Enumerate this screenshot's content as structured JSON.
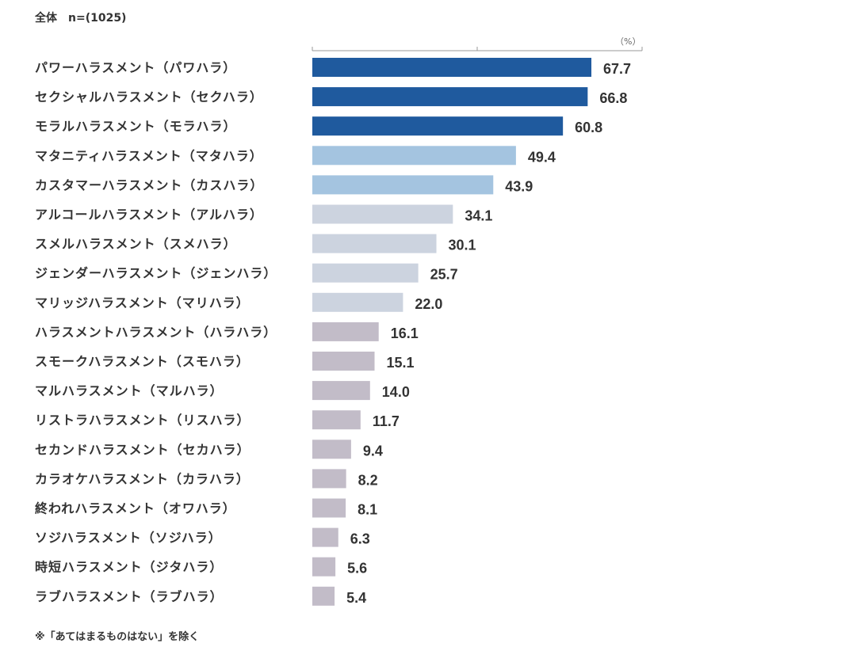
{
  "header": {
    "title": "全体　n=(1025)",
    "unit": "（%）"
  },
  "footnote": "※「あてはまるものはない」を除く",
  "colors": {
    "tier1": "#1f5a9e",
    "tier2": "#a4c4e0",
    "tier3": "#ccd3df",
    "tier4": "#c2bcc8",
    "axis": "#999999"
  },
  "chart_data": {
    "type": "bar",
    "orientation": "horizontal",
    "title": "全体　n=(1025)",
    "unit": "（%）",
    "xlim": [
      0,
      100
    ],
    "grid": false,
    "legend": "none",
    "categories": [
      "パワーハラスメント（パワハラ）",
      "セクシャルハラスメント（セクハラ）",
      "モラルハラスメント（モラハラ）",
      "マタニティハラスメント（マタハラ）",
      "カスタマーハラスメント（カスハラ）",
      "アルコールハラスメント（アルハラ）",
      "スメルハラスメント（スメハラ）",
      "ジェンダーハラスメント（ジェンハラ）",
      "マリッジハラスメント（マリハラ）",
      "ハラスメントハラスメント（ハラハラ）",
      "スモークハラスメント（スモハラ）",
      "マルハラスメント（マルハラ）",
      "リストラハラスメント（リスハラ）",
      "セカンドハラスメント（セカハラ）",
      "カラオケハラスメント（カラハラ）",
      "終われハラスメント（オワハラ）",
      "ソジハラスメント（ソジハラ）",
      "時短ハラスメント（ジタハラ）",
      "ラブハラスメント（ラブハラ）"
    ],
    "values": [
      67.7,
      66.8,
      60.8,
      49.4,
      43.9,
      34.1,
      30.1,
      25.7,
      22.0,
      16.1,
      15.1,
      14.0,
      11.7,
      9.4,
      8.2,
      8.1,
      6.3,
      5.6,
      5.4
    ],
    "value_labels": [
      "67.7",
      "66.8",
      "60.8",
      "49.4",
      "43.9",
      "34.1",
      "30.1",
      "25.7",
      "22.0",
      "16.1",
      "15.1",
      "14.0",
      "11.7",
      "9.4",
      "8.2",
      "8.1",
      "6.3",
      "5.6",
      "5.4"
    ],
    "bar_color_tier": [
      1,
      1,
      1,
      2,
      2,
      3,
      3,
      3,
      3,
      4,
      4,
      4,
      4,
      4,
      4,
      4,
      4,
      4,
      4
    ]
  }
}
